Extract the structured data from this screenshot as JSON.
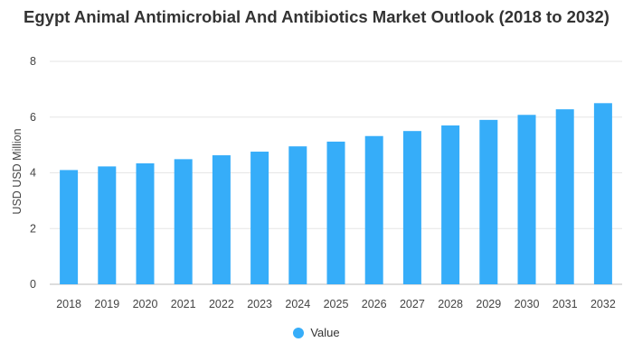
{
  "chart_data": {
    "type": "bar",
    "title": "Egypt Animal Antimicrobial And Antibiotics Market Outlook (2018 to 2032)",
    "xlabel": "",
    "ylabel": "USD USD Million",
    "categories": [
      "2018",
      "2019",
      "2020",
      "2021",
      "2022",
      "2023",
      "2024",
      "2025",
      "2026",
      "2027",
      "2028",
      "2029",
      "2030",
      "2031",
      "2032"
    ],
    "series": [
      {
        "name": "Value",
        "values": [
          4.1,
          4.23,
          4.34,
          4.49,
          4.63,
          4.76,
          4.95,
          5.12,
          5.32,
          5.5,
          5.7,
          5.9,
          6.08,
          6.28,
          6.5
        ],
        "color": "#36adf9"
      }
    ],
    "ylim": [
      0,
      8
    ],
    "yticks": [
      0,
      2,
      4,
      6,
      8
    ],
    "grid": true,
    "legend_position": "bottom-center"
  }
}
